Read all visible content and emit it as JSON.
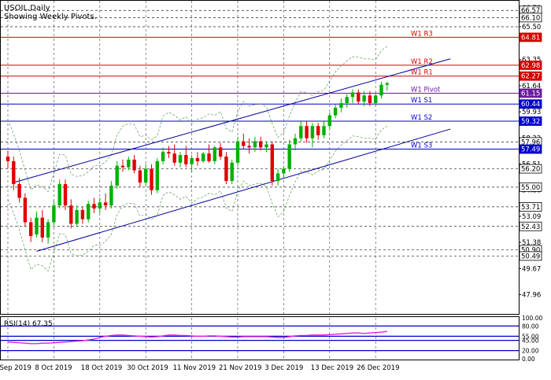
{
  "chart_data": {
    "type": "candlestick",
    "symbol_title": "USOIL,Daily",
    "subtitle": "Showing Weekly Pivots.",
    "price_range": [
      46.7,
      67.2
    ],
    "price_ticks": [
      {
        "value": 66.73,
        "label": "66.73"
      },
      {
        "value": 65.5,
        "label": "65.50"
      },
      {
        "value": 63.35,
        "label": "63.35"
      },
      {
        "value": 61.64,
        "label": "61.64"
      },
      {
        "value": 59.93,
        "label": "59.93"
      },
      {
        "value": 58.22,
        "label": "58.22"
      },
      {
        "value": 56.51,
        "label": "56.51"
      },
      {
        "value": 54.8,
        "label": "54.80"
      },
      {
        "value": 53.09,
        "label": "53.09"
      },
      {
        "value": 51.38,
        "label": "51.38"
      },
      {
        "value": 49.67,
        "label": "49.67"
      },
      {
        "value": 47.96,
        "label": "47.96"
      }
    ],
    "price_tags": [
      {
        "value": 66.57,
        "label": "66.57",
        "style": "plain"
      },
      {
        "value": 66.1,
        "label": "66.10",
        "style": "plain"
      },
      {
        "value": 64.81,
        "label": "64.81",
        "style": "red"
      },
      {
        "value": 62.98,
        "label": "62.98",
        "style": "red"
      },
      {
        "value": 62.27,
        "label": "62.27",
        "style": "red"
      },
      {
        "value": 61.15,
        "label": "61.15",
        "style": "purple"
      },
      {
        "value": 60.44,
        "label": "60.44",
        "style": "blue"
      },
      {
        "value": 59.32,
        "label": "59.32",
        "style": "blue"
      },
      {
        "value": 57.96,
        "label": "57.96",
        "style": "plain"
      },
      {
        "value": 57.49,
        "label": "57.49",
        "style": "blue"
      },
      {
        "value": 56.2,
        "label": "56.20",
        "style": "plain"
      },
      {
        "value": 55.0,
        "label": "55.00",
        "style": "plain"
      },
      {
        "value": 53.71,
        "label": "53.71",
        "style": "plain"
      },
      {
        "value": 52.43,
        "label": "52.43",
        "style": "plain"
      },
      {
        "value": 50.9,
        "label": "50.90",
        "style": "plain"
      },
      {
        "value": 50.49,
        "label": "50.49",
        "style": "plain"
      }
    ],
    "pivot_levels": [
      {
        "name": "W1 R3",
        "value": 64.81,
        "color": "#d40000"
      },
      {
        "name": "W1 R2",
        "value": 62.98,
        "color": "#d40000"
      },
      {
        "name": "W1 R1",
        "value": 62.27,
        "color": "#d40000"
      },
      {
        "name": "W1 Pivot",
        "value": 61.15,
        "color": "#6a1b9a"
      },
      {
        "name": "W1 S1",
        "value": 60.44,
        "color": "#0000c8"
      },
      {
        "name": "W1 S2",
        "value": 59.32,
        "color": "#0000c8"
      },
      {
        "name": "W1 S3",
        "value": 57.49,
        "color": "#0000c8"
      }
    ],
    "dashed_levels": [
      66.57,
      66.1,
      65.5,
      57.96,
      56.2,
      55.0,
      53.71,
      52.43,
      50.9,
      50.49
    ],
    "x_labels": [
      "26 Sep 2019",
      "8 Oct 2019",
      "18 Oct 2019",
      "30 Oct 2019",
      "11 Nov 2019",
      "21 Nov 2019",
      "3 Dec 2019",
      "13 Dec 2019",
      "26 Dec 2019"
    ],
    "x_label_index": [
      0,
      8,
      16,
      24,
      32,
      40,
      48,
      56,
      64
    ],
    "candles": [
      {
        "o": 57.0,
        "h": 57.4,
        "l": 56.2,
        "c": 56.7
      },
      {
        "o": 56.7,
        "h": 57.0,
        "l": 54.8,
        "c": 55.2
      },
      {
        "o": 55.2,
        "h": 55.6,
        "l": 54.0,
        "c": 54.3
      },
      {
        "o": 54.3,
        "h": 54.6,
        "l": 52.4,
        "c": 52.7
      },
      {
        "o": 52.7,
        "h": 53.0,
        "l": 51.4,
        "c": 51.8
      },
      {
        "o": 51.9,
        "h": 53.4,
        "l": 51.7,
        "c": 53.0
      },
      {
        "o": 53.0,
        "h": 53.5,
        "l": 51.4,
        "c": 51.7
      },
      {
        "o": 51.7,
        "h": 52.9,
        "l": 51.3,
        "c": 52.7
      },
      {
        "o": 52.7,
        "h": 54.1,
        "l": 52.5,
        "c": 53.8
      },
      {
        "o": 53.8,
        "h": 55.5,
        "l": 53.6,
        "c": 55.2
      },
      {
        "o": 55.2,
        "h": 55.5,
        "l": 53.5,
        "c": 53.8
      },
      {
        "o": 53.8,
        "h": 54.2,
        "l": 52.3,
        "c": 52.6
      },
      {
        "o": 52.6,
        "h": 53.8,
        "l": 52.4,
        "c": 53.5
      },
      {
        "o": 53.5,
        "h": 53.7,
        "l": 52.6,
        "c": 52.9
      },
      {
        "o": 52.9,
        "h": 54.1,
        "l": 52.7,
        "c": 53.9
      },
      {
        "o": 53.9,
        "h": 54.3,
        "l": 53.3,
        "c": 53.6
      },
      {
        "o": 53.6,
        "h": 54.3,
        "l": 53.3,
        "c": 54.0
      },
      {
        "o": 54.0,
        "h": 54.6,
        "l": 53.5,
        "c": 53.8
      },
      {
        "o": 53.8,
        "h": 55.4,
        "l": 53.6,
        "c": 55.1
      },
      {
        "o": 55.1,
        "h": 56.7,
        "l": 54.9,
        "c": 56.4
      },
      {
        "o": 56.4,
        "h": 56.8,
        "l": 56.0,
        "c": 56.3
      },
      {
        "o": 56.3,
        "h": 57.0,
        "l": 56.1,
        "c": 56.8
      },
      {
        "o": 56.8,
        "h": 57.1,
        "l": 55.9,
        "c": 56.1
      },
      {
        "o": 56.1,
        "h": 56.4,
        "l": 55.0,
        "c": 55.3
      },
      {
        "o": 55.3,
        "h": 56.5,
        "l": 55.1,
        "c": 56.2
      },
      {
        "o": 56.2,
        "h": 56.5,
        "l": 54.5,
        "c": 54.8
      },
      {
        "o": 54.8,
        "h": 56.9,
        "l": 54.6,
        "c": 56.7
      },
      {
        "o": 56.7,
        "h": 57.6,
        "l": 56.5,
        "c": 57.3
      },
      {
        "o": 57.3,
        "h": 57.7,
        "l": 56.9,
        "c": 57.2
      },
      {
        "o": 57.2,
        "h": 57.8,
        "l": 56.4,
        "c": 56.6
      },
      {
        "o": 56.6,
        "h": 57.3,
        "l": 56.3,
        "c": 57.1
      },
      {
        "o": 57.1,
        "h": 57.7,
        "l": 56.3,
        "c": 56.5
      },
      {
        "o": 56.5,
        "h": 57.1,
        "l": 56.0,
        "c": 56.9
      },
      {
        "o": 56.9,
        "h": 57.3,
        "l": 56.4,
        "c": 56.7
      },
      {
        "o": 56.7,
        "h": 57.3,
        "l": 56.6,
        "c": 57.2
      },
      {
        "o": 57.2,
        "h": 57.8,
        "l": 56.6,
        "c": 56.7
      },
      {
        "o": 56.7,
        "h": 57.7,
        "l": 56.5,
        "c": 57.6
      },
      {
        "o": 57.6,
        "h": 57.9,
        "l": 56.8,
        "c": 57.0
      },
      {
        "o": 57.0,
        "h": 57.3,
        "l": 55.2,
        "c": 55.4
      },
      {
        "o": 55.4,
        "h": 56.8,
        "l": 55.2,
        "c": 56.6
      },
      {
        "o": 56.6,
        "h": 58.3,
        "l": 56.4,
        "c": 58.0
      },
      {
        "o": 58.0,
        "h": 58.5,
        "l": 57.5,
        "c": 57.7
      },
      {
        "o": 57.7,
        "h": 58.2,
        "l": 57.2,
        "c": 57.6
      },
      {
        "o": 57.6,
        "h": 58.3,
        "l": 57.3,
        "c": 58.0
      },
      {
        "o": 58.0,
        "h": 58.3,
        "l": 57.4,
        "c": 57.6
      },
      {
        "o": 57.6,
        "h": 58.0,
        "l": 57.3,
        "c": 57.8
      },
      {
        "o": 57.8,
        "h": 58.0,
        "l": 55.1,
        "c": 55.4
      },
      {
        "o": 55.4,
        "h": 56.2,
        "l": 55.1,
        "c": 55.9
      },
      {
        "o": 55.9,
        "h": 56.4,
        "l": 55.6,
        "c": 56.2
      },
      {
        "o": 56.2,
        "h": 58.1,
        "l": 56.0,
        "c": 57.8
      },
      {
        "o": 57.8,
        "h": 58.5,
        "l": 57.4,
        "c": 58.2
      },
      {
        "o": 58.2,
        "h": 59.3,
        "l": 58.0,
        "c": 59.0
      },
      {
        "o": 59.0,
        "h": 59.3,
        "l": 57.9,
        "c": 58.2
      },
      {
        "o": 58.2,
        "h": 59.2,
        "l": 57.6,
        "c": 59.0
      },
      {
        "o": 59.0,
        "h": 59.2,
        "l": 58.1,
        "c": 58.4
      },
      {
        "o": 58.4,
        "h": 59.3,
        "l": 58.2,
        "c": 59.0
      },
      {
        "o": 59.0,
        "h": 59.9,
        "l": 58.8,
        "c": 59.7
      },
      {
        "o": 59.7,
        "h": 60.4,
        "l": 59.5,
        "c": 60.2
      },
      {
        "o": 60.2,
        "h": 60.8,
        "l": 59.9,
        "c": 60.5
      },
      {
        "o": 60.5,
        "h": 61.1,
        "l": 60.2,
        "c": 60.9
      },
      {
        "o": 60.9,
        "h": 61.4,
        "l": 60.5,
        "c": 61.2
      },
      {
        "o": 61.2,
        "h": 61.4,
        "l": 60.4,
        "c": 60.6
      },
      {
        "o": 60.6,
        "h": 61.3,
        "l": 60.3,
        "c": 61.0
      },
      {
        "o": 61.0,
        "h": 61.3,
        "l": 60.3,
        "c": 60.5
      },
      {
        "o": 60.5,
        "h": 61.2,
        "l": 60.3,
        "c": 61.0
      },
      {
        "o": 61.0,
        "h": 61.9,
        "l": 60.8,
        "c": 61.7
      },
      {
        "o": 61.7,
        "h": 61.9,
        "l": 61.3,
        "c": 61.8
      }
    ],
    "channel_upper": [
      [
        1,
        55.3
      ],
      [
        77,
        63.4
      ]
    ],
    "channel_lower": [
      [
        5,
        50.8
      ],
      [
        77,
        58.8
      ]
    ],
    "rsi": {
      "label": "RSI(14) 67.35",
      "value": 67.35,
      "range": [
        0,
        100
      ],
      "ticks": [
        {
          "value": 100,
          "label": "100.00"
        },
        {
          "value": 80,
          "label": "80.00"
        },
        {
          "value": 55,
          "label": "55.00"
        },
        {
          "value": 45,
          "label": "45.00"
        },
        {
          "value": 20,
          "label": "20.00"
        },
        {
          "value": 0,
          "label": "0.00"
        }
      ],
      "levels": [
        80,
        55,
        45,
        20
      ],
      "line_color": "#e020e0",
      "values": [
        41,
        40,
        39,
        38,
        37,
        37,
        38,
        38,
        39,
        40,
        41,
        42,
        43,
        44,
        46,
        48,
        52,
        55,
        57,
        58,
        58,
        57,
        56,
        55,
        54,
        53,
        54,
        56,
        58,
        58,
        57,
        57,
        56,
        55,
        55,
        56,
        56,
        55,
        54,
        53,
        53,
        54,
        54,
        54,
        54,
        54,
        53,
        52,
        52,
        54,
        56,
        57,
        57,
        58,
        58,
        58,
        59,
        60,
        61,
        62,
        63,
        63,
        62,
        63,
        64,
        65,
        67
      ]
    },
    "colors": {
      "bull": "#00b000",
      "bear": "#e00000",
      "channel": "#00009a",
      "envelope": "#5a9a5a",
      "grid": "#444444",
      "axis_text": "#000000",
      "rsi_level": "#0000c8"
    }
  }
}
